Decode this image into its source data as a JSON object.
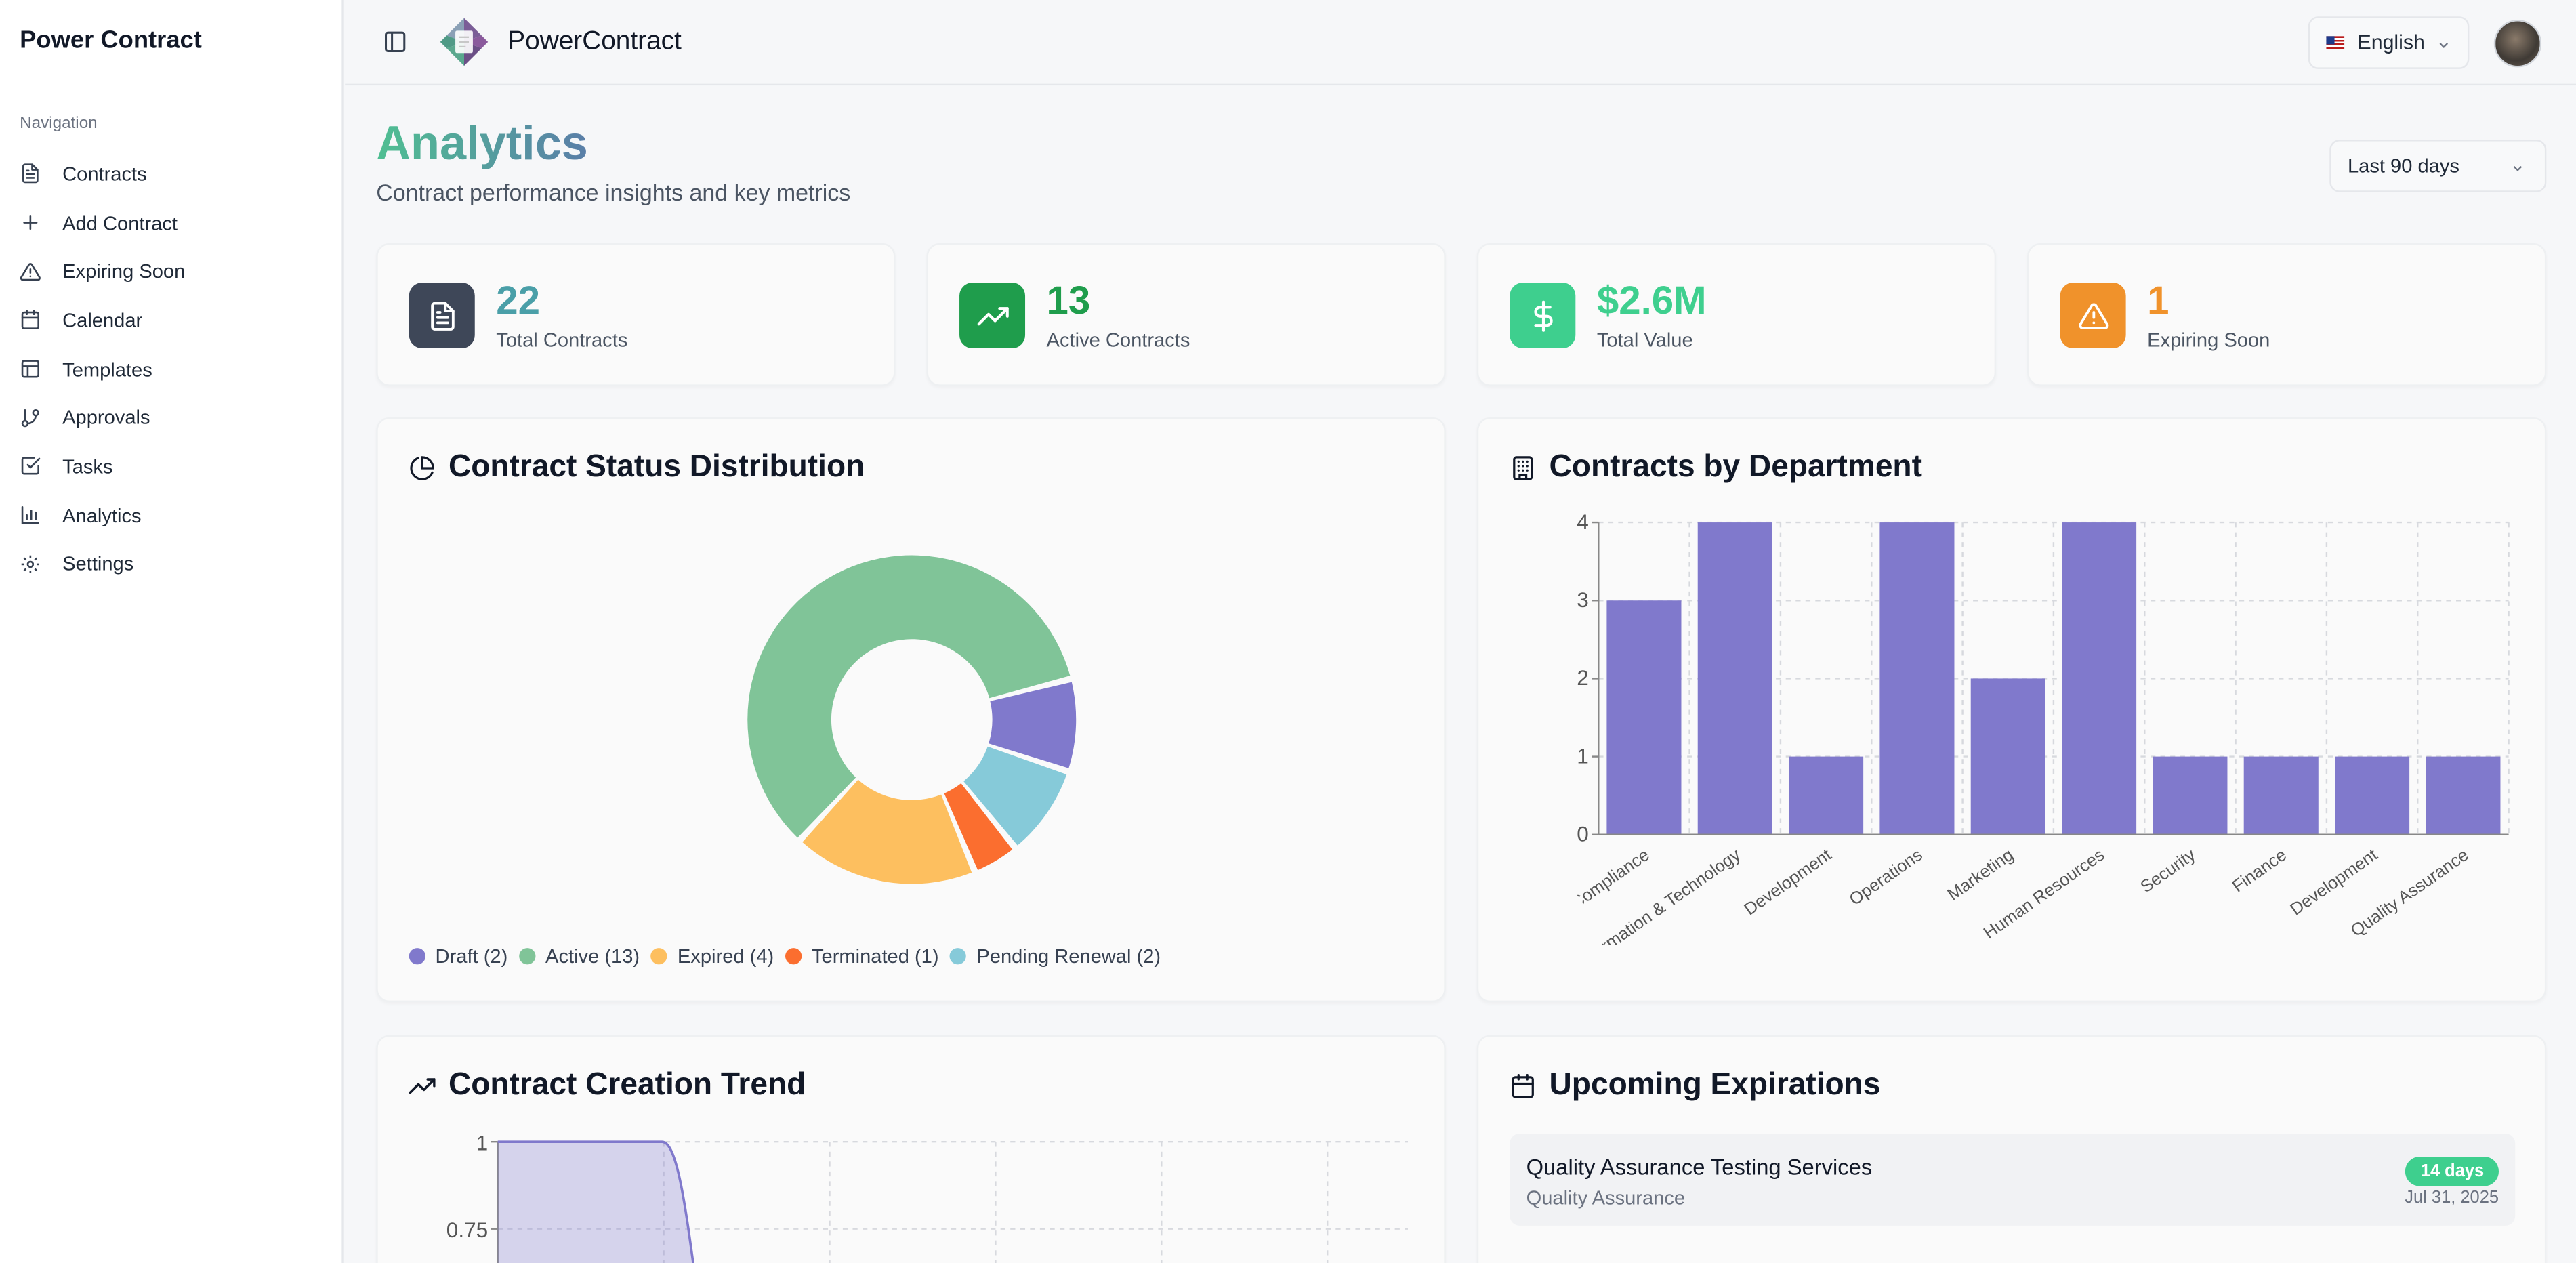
{
  "sidebar": {
    "brand": "Power Contract",
    "nav_label": "Navigation",
    "items": [
      {
        "label": "Contracts",
        "icon": "file-text-icon"
      },
      {
        "label": "Add Contract",
        "icon": "plus-icon"
      },
      {
        "label": "Expiring Soon",
        "icon": "alert-triangle-icon"
      },
      {
        "label": "Calendar",
        "icon": "calendar-icon"
      },
      {
        "label": "Templates",
        "icon": "layout-icon"
      },
      {
        "label": "Approvals",
        "icon": "git-branch-icon"
      },
      {
        "label": "Tasks",
        "icon": "check-square-icon"
      },
      {
        "label": "Analytics",
        "icon": "bar-chart-icon"
      },
      {
        "label": "Settings",
        "icon": "gear-icon"
      }
    ]
  },
  "header": {
    "app_name": "PowerContract",
    "language": "English"
  },
  "page": {
    "title": "Analytics",
    "subtitle": "Contract performance insights and key metrics",
    "date_range": "Last 90 days"
  },
  "stats": [
    {
      "value": "22",
      "label": "Total Contracts",
      "color": "#4a9fa8",
      "icon_bg": "#3e4758",
      "icon": "file-text-icon"
    },
    {
      "value": "13",
      "label": "Active Contracts",
      "color": "#1f9d4c",
      "icon_bg": "#1f9d4c",
      "icon": "trending-up-icon"
    },
    {
      "value": "$2.6M",
      "label": "Total Value",
      "color": "#3ecf8e",
      "icon_bg": "#3ecf8e",
      "icon": "dollar-icon"
    },
    {
      "value": "1",
      "label": "Expiring Soon",
      "color": "#f0922b",
      "icon_bg": "#f0922b",
      "icon": "alert-triangle-icon"
    }
  ],
  "status_card": {
    "title": "Contract Status Distribution"
  },
  "department_card": {
    "title": "Contracts by Department"
  },
  "trend_card": {
    "title": "Contract Creation Trend"
  },
  "expirations_card": {
    "title": "Upcoming Expirations",
    "items": [
      {
        "title": "Quality Assurance Testing Services",
        "department": "Quality Assurance",
        "badge": "14 days",
        "date": "Jul 31, 2025"
      }
    ]
  },
  "chart_data": [
    {
      "type": "pie",
      "labels": [
        "Draft",
        "Active",
        "Expired",
        "Terminated",
        "Pending Renewal"
      ],
      "values": [
        2,
        13,
        4,
        1,
        2
      ],
      "legend": [
        "Draft (2)",
        "Active (13)",
        "Expired (4)",
        "Terminated (1)",
        "Pending Renewal (2)"
      ],
      "colors": [
        "#8079cc",
        "#80c498",
        "#fdbf5f",
        "#fb6e2f",
        "#86cad9"
      ],
      "legend_placement": "bottom"
    },
    {
      "type": "bar",
      "categories": [
        "Legal & Compliance",
        "Information & Technology",
        "Development",
        "Operations",
        "Marketing",
        "Human Resources",
        "Security",
        "Finance",
        "Development",
        "Quality Assurance"
      ],
      "values": [
        3,
        4,
        1,
        4,
        2,
        4,
        1,
        1,
        1,
        1
      ],
      "ylim": [
        0,
        4
      ],
      "yticks": [
        0,
        1,
        2,
        3,
        4
      ],
      "color": "#8079cc",
      "grid": true
    },
    {
      "type": "area",
      "yticks": [
        "1",
        "0.75"
      ],
      "values": [
        1,
        1,
        0
      ],
      "color": "#8079cc",
      "grid": true
    }
  ]
}
